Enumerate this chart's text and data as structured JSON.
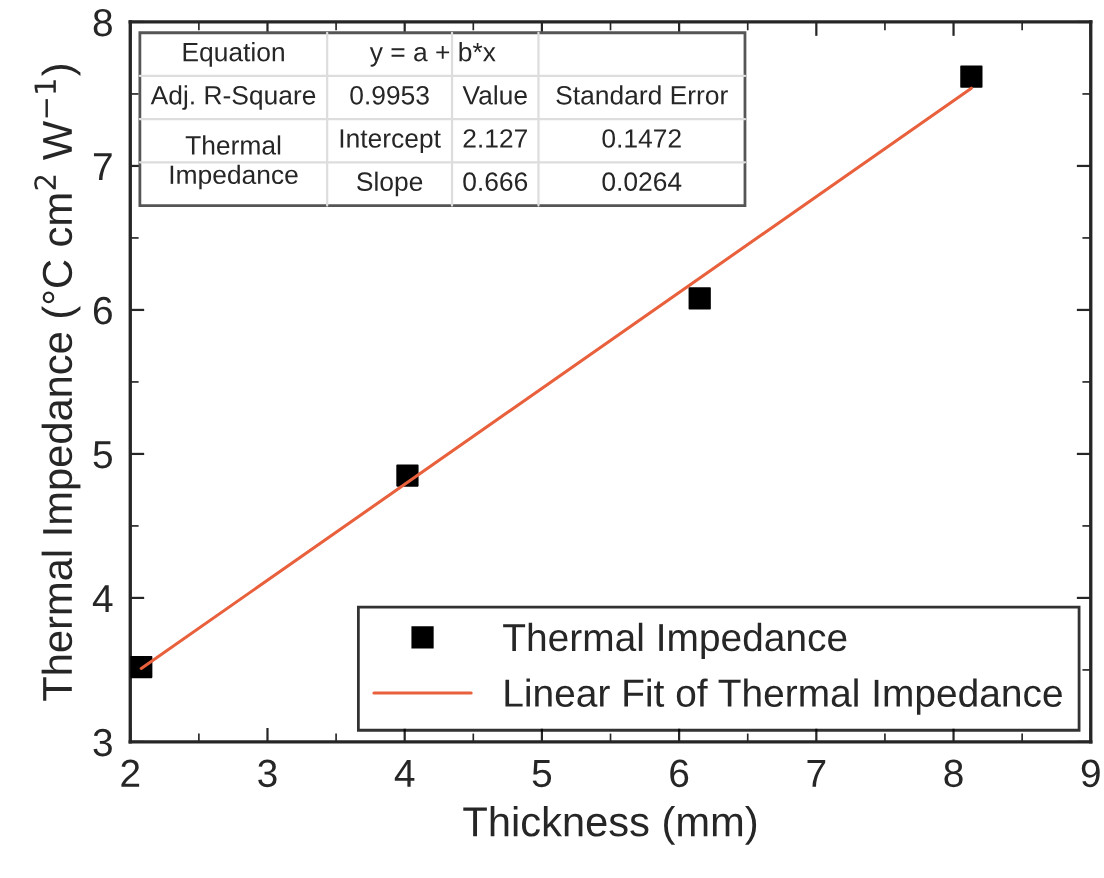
{
  "chart_data": {
    "type": "scatter",
    "xlabel": "Thickness (mm)",
    "ylabel": "Thermal Impedance (°C cm$^{2}$ W$^{−1}$)",
    "xlim": [
      2,
      9
    ],
    "xticks": [
      2,
      3,
      4,
      5,
      6,
      7,
      8,
      9
    ],
    "ylim": [
      3,
      8
    ],
    "yticks": [
      3,
      4,
      5,
      6,
      7,
      8
    ],
    "grid": false,
    "legend": "bottom right",
    "series": [
      {
        "name": "Thermal Impedance",
        "marker": "square",
        "color": "#000000",
        "x": [
          2.08,
          4.02,
          6.15,
          8.13
        ],
        "values": [
          3.52,
          4.85,
          6.08,
          7.62
        ]
      },
      {
        "name": "Linear Fit of Thermal Impedance",
        "type": "line",
        "marker": "none",
        "line_style": "solid",
        "color": "#e8603c",
        "x": [
          2.08,
          8.13
        ],
        "values": [
          3.51,
          7.54
        ]
      }
    ],
    "annotations": [
      "Equation",
      "y = a + b*x",
      "Adj. R-Square",
      "0.9953",
      "Value",
      "Standard Error",
      "Thermal\nImpedance",
      "Intercept",
      "2.127",
      "0.1472",
      "Slope",
      "0.666",
      "0.0264"
    ]
  }
}
